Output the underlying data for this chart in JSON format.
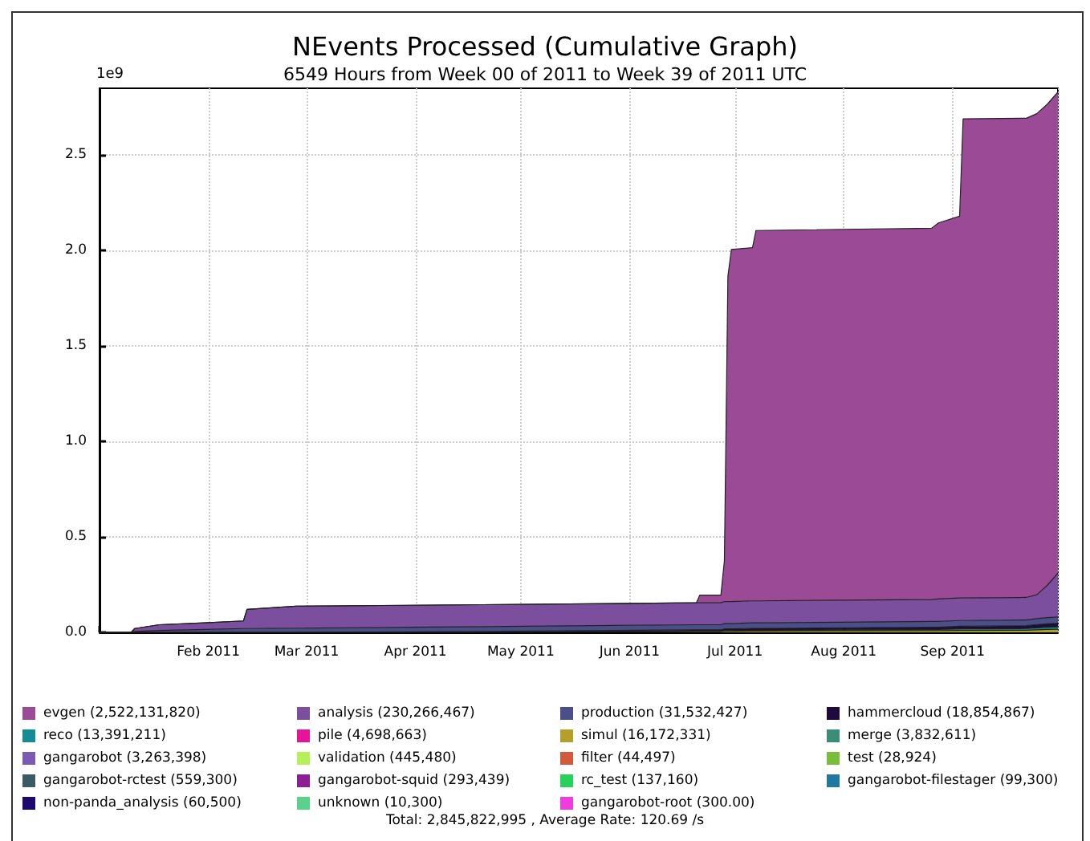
{
  "chart_data": {
    "type": "area",
    "stacked": true,
    "title": "NEvents Processed (Cumulative Graph)",
    "subtitle": "6549 Hours from Week 00 of 2011 to Week 39 of 2011 UTC",
    "annotations": [
      "1e9",
      "Total: 2,845,822,995 , Average Rate: 120.69 /s"
    ],
    "x": [
      "2011-01-01",
      "2011-01-10",
      "2011-01-11",
      "2011-01-18",
      "2011-01-31",
      "2011-02-11",
      "2011-02-12",
      "2011-02-26",
      "2011-04-20",
      "2011-06-20",
      "2011-06-21",
      "2011-06-27",
      "2011-06-28",
      "2011-06-29",
      "2011-06-30",
      "2011-07-06",
      "2011-07-07",
      "2011-08-26",
      "2011-08-28",
      "2011-09-03",
      "2011-09-04",
      "2011-09-22",
      "2011-09-25",
      "2011-09-28",
      "2011-10-01"
    ],
    "xlim": [
      "2011-01-01",
      "2011-10-01"
    ],
    "xticks": [
      {
        "value": "2011-02-01",
        "label": "Feb 2011"
      },
      {
        "value": "2011-03-01",
        "label": "Mar 2011"
      },
      {
        "value": "2011-04-01",
        "label": "Apr 2011"
      },
      {
        "value": "2011-05-01",
        "label": "May 2011"
      },
      {
        "value": "2011-06-01",
        "label": "Jun 2011"
      },
      {
        "value": "2011-07-01",
        "label": "Jul 2011"
      },
      {
        "value": "2011-08-01",
        "label": "Aug 2011"
      },
      {
        "value": "2011-09-01",
        "label": "Sep 2011"
      }
    ],
    "ylim": [
      0,
      2.85
    ],
    "yticks": [
      {
        "value": 0,
        "label": "0.0"
      },
      0.5,
      {
        "value": 1,
        "label": "1.0"
      },
      1.5,
      {
        "value": 2,
        "label": "2.0"
      },
      2.5
    ],
    "grid": true,
    "legend": "bottom",
    "series": [
      {
        "name": "gangarobot-root (300.00)",
        "color": "#f03cdc",
        "values": [
          null,
          null,
          null,
          null,
          null,
          null,
          null,
          null,
          null,
          null,
          null,
          null,
          null,
          null,
          null,
          null,
          null,
          null,
          null,
          null,
          null,
          null,
          null,
          null,
          null
        ]
      },
      {
        "name": "unknown (10,300)",
        "color": "#5ad28c",
        "values": [
          null,
          null,
          null,
          null,
          null,
          null,
          null,
          null,
          null,
          null,
          null,
          null,
          null,
          null,
          null,
          null,
          null,
          null,
          null,
          null,
          null,
          null,
          null,
          null,
          null
        ]
      },
      {
        "name": "non-panda_analysis (60,500)",
        "color": "#1e0a6e",
        "values": [
          null,
          null,
          null,
          null,
          null,
          null,
          null,
          null,
          null,
          null,
          null,
          null,
          null,
          null,
          null,
          null,
          null,
          null,
          null,
          null,
          null,
          null,
          null,
          null,
          null
        ]
      },
      {
        "name": "gangarobot-filestager (99,300)",
        "color": "#1e78a0",
        "values": [
          null,
          null,
          null,
          null,
          null,
          null,
          null,
          null,
          null,
          null,
          null,
          null,
          null,
          null,
          null,
          null,
          null,
          null,
          null,
          null,
          null,
          null,
          null,
          null,
          null
        ]
      },
      {
        "name": "rc_test (137,160)",
        "color": "#28d25a",
        "values": [
          null,
          null,
          null,
          null,
          null,
          null,
          null,
          null,
          null,
          null,
          null,
          null,
          null,
          null,
          null,
          null,
          null,
          null,
          null,
          null,
          null,
          null,
          null,
          null,
          null
        ]
      },
      {
        "name": "gangarobot-squid (293,439)",
        "color": "#8c1e96",
        "values": [
          null,
          null,
          null,
          null,
          null,
          null,
          null,
          null,
          null,
          null,
          null,
          null,
          null,
          null,
          null,
          null,
          null,
          null,
          null,
          null,
          null,
          null,
          null,
          null,
          null
        ]
      },
      {
        "name": "gangarobot-rctest (559,300)",
        "color": "#3c5a64",
        "values": [
          null,
          null,
          null,
          null,
          null,
          null,
          null,
          null,
          null,
          null,
          null,
          null,
          null,
          null,
          null,
          null,
          null,
          null,
          null,
          null,
          null,
          null,
          null,
          null,
          null
        ]
      },
      {
        "name": "test (28,924)",
        "color": "#78be3c",
        "values": [
          null,
          null,
          null,
          null,
          null,
          null,
          null,
          null,
          null,
          null,
          null,
          null,
          null,
          null,
          null,
          null,
          null,
          null,
          null,
          null,
          null,
          null,
          null,
          null,
          null
        ]
      },
      {
        "name": "filter (44,497)",
        "color": "#d25a3c",
        "values": [
          null,
          null,
          null,
          null,
          null,
          null,
          null,
          null,
          null,
          null,
          null,
          null,
          null,
          null,
          null,
          null,
          null,
          null,
          null,
          null,
          null,
          null,
          null,
          null,
          null
        ]
      },
      {
        "name": "validation (445,480)",
        "color": "#b4f05a",
        "values": [
          null,
          null,
          null,
          null,
          null,
          null,
          null,
          null,
          null,
          null,
          null,
          null,
          null,
          null,
          null,
          null,
          null,
          null,
          null,
          null,
          null,
          null,
          null,
          null,
          null
        ]
      },
      {
        "name": "gangarobot (3,263,398)",
        "color": "#7b5ab4",
        "values": [
          null,
          null,
          null,
          null,
          null,
          null,
          null,
          null,
          null,
          null,
          null,
          null,
          null,
          null,
          null,
          null,
          null,
          null,
          null,
          null,
          null,
          null,
          null,
          null,
          null
        ]
      },
      {
        "name": "merge (3,832,611)",
        "color": "#3c8c78",
        "values": [
          null,
          null,
          null,
          null,
          null,
          null,
          null,
          null,
          null,
          null,
          null,
          null,
          null,
          null,
          null,
          null,
          null,
          null,
          null,
          null,
          null,
          null,
          null,
          null,
          null
        ]
      },
      {
        "name": "simul (16,172,331)",
        "color": "#b4a028",
        "values": [
          0,
          0,
          0,
          0,
          0,
          0,
          0,
          0,
          0,
          0.005,
          0.005,
          0.005,
          0.006,
          0.006,
          0.006,
          0.007,
          0.007,
          0.009,
          0.009,
          0.01,
          0.01,
          0.011,
          0.013,
          0.015,
          0.016
        ]
      },
      {
        "name": "pile (4,698,663)",
        "color": "#e6149b",
        "values": [
          null,
          null,
          null,
          null,
          null,
          null,
          null,
          null,
          null,
          null,
          null,
          null,
          null,
          null,
          null,
          null,
          null,
          null,
          null,
          null,
          null,
          null,
          null,
          null,
          null
        ]
      },
      {
        "name": "reco (13,391,211)",
        "color": "#138c96",
        "values": [
          0,
          0,
          0,
          0,
          0,
          0,
          0,
          0,
          0,
          0,
          0,
          0,
          0.003,
          0.003,
          0.003,
          0.004,
          0.004,
          0.006,
          0.006,
          0.008,
          0.008,
          0.009,
          0.011,
          0.012,
          0.013
        ]
      },
      {
        "name": "hammercloud (18,854,867)",
        "color": "#1e0a3c",
        "values": [
          0,
          0,
          0,
          0,
          0,
          0,
          0,
          0,
          0.005,
          0.008,
          0.008,
          0.008,
          0.009,
          0.009,
          0.009,
          0.01,
          0.01,
          0.012,
          0.012,
          0.014,
          0.014,
          0.015,
          0.017,
          0.018,
          0.019
        ]
      },
      {
        "name": "production (31,532,427)",
        "color": "#4a4e89",
        "values": [
          0,
          0,
          0.005,
          0.01,
          0.015,
          0.02,
          0.02,
          0.022,
          0.025,
          0.027,
          0.027,
          0.027,
          0.028,
          0.028,
          0.028,
          0.029,
          0.029,
          0.03,
          0.03,
          0.03,
          0.03,
          0.03,
          0.031,
          0.032,
          0.032
        ]
      },
      {
        "name": "analysis (230,266,467)",
        "color": "#7b4f9e",
        "values": [
          0,
          0,
          0.015,
          0.03,
          0.035,
          0.04,
          0.1,
          0.115,
          0.115,
          0.115,
          0.115,
          0.115,
          0.115,
          0.115,
          0.115,
          0.115,
          0.115,
          0.115,
          0.118,
          0.118,
          0.118,
          0.118,
          0.125,
          0.17,
          0.23
        ]
      },
      {
        "name": "evgen (2,522,131,820)",
        "color": "#9b4a96",
        "values": [
          0,
          0,
          0,
          0,
          0,
          0,
          0,
          0,
          0,
          0,
          0.04,
          0.04,
          0.215,
          1.705,
          1.845,
          1.85,
          1.94,
          1.945,
          1.97,
          2.0,
          2.51,
          2.51,
          2.52,
          2.52,
          2.52
        ]
      }
    ]
  }
}
